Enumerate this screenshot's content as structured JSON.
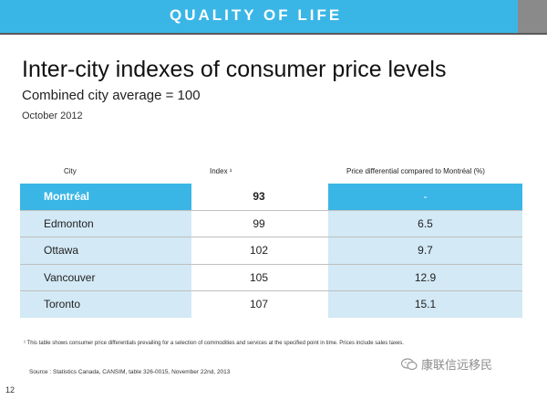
{
  "banner": {
    "title": "QUALITY OF LIFE",
    "color": "#3ab6e6"
  },
  "title": "Inter-city indexes of consumer price levels",
  "subtitle": "Combined city average = 100",
  "date": "October 2012",
  "table": {
    "headers": {
      "city": "City",
      "index": "Index ¹",
      "diff": "Price differential compared to Montréal (%)"
    },
    "rows": [
      {
        "city": "Montréal",
        "index": "93",
        "diff": "-"
      },
      {
        "city": "Edmonton",
        "index": "99",
        "diff": "6.5"
      },
      {
        "city": "Ottawa",
        "index": "102",
        "diff": "9.7"
      },
      {
        "city": "Vancouver",
        "index": "105",
        "diff": "12.9"
      },
      {
        "city": "Toronto",
        "index": "107",
        "diff": "15.1"
      }
    ]
  },
  "footnote": "¹ This table shows consumer price differentials prevailing for a selection of commodities and services at the specified point in time. Prices include sales taxes.",
  "source": "Source : Statistics Canada, CANSIM, table 326-0015, November 22nd, 2013",
  "page_number": "12",
  "watermark": {
    "text": "康联信远移民",
    "icon": "wechat-icon"
  }
}
